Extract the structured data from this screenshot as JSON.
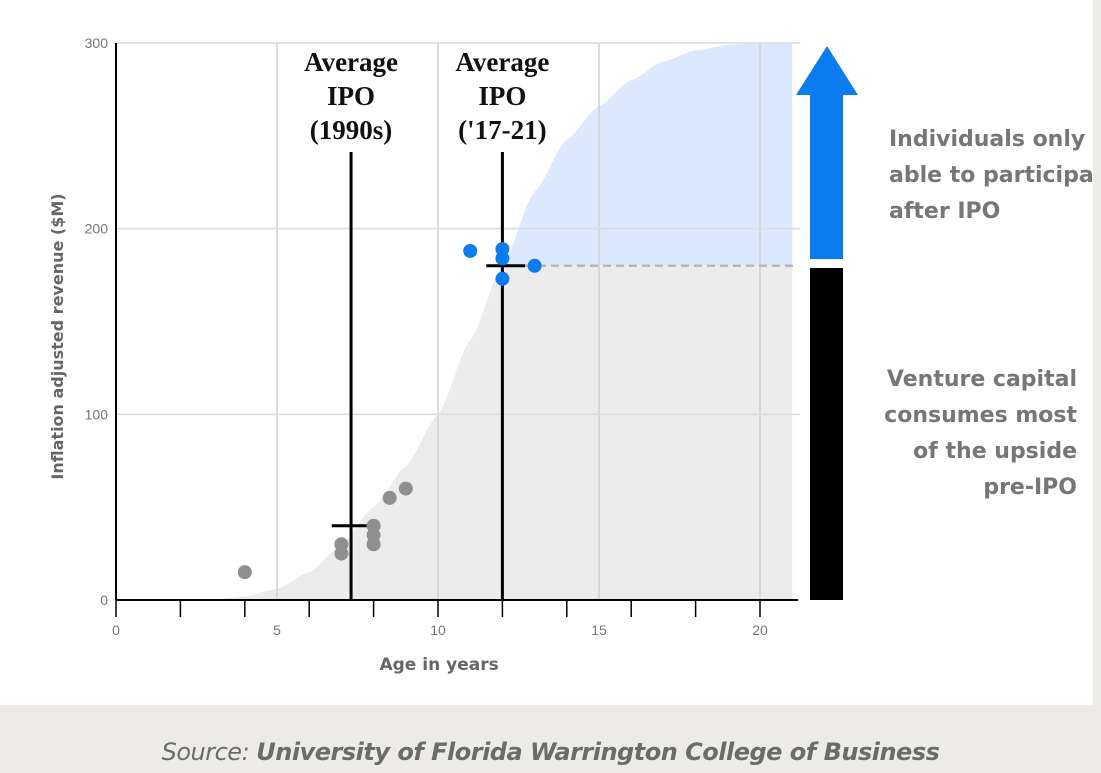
{
  "chart_data": {
    "type": "scatter",
    "xlabel": "Age in years",
    "ylabel": "Inflation adjusted revenue ($M)",
    "xlim": [
      0,
      21
    ],
    "ylim": [
      0,
      300
    ],
    "x_ticks": [
      0,
      5,
      10,
      15,
      20
    ],
    "y_ticks": [
      0,
      100,
      200,
      300
    ],
    "grid": true,
    "curve": {
      "x": [
        0,
        3,
        4,
        5,
        6,
        7,
        8,
        9,
        10,
        11,
        12,
        13,
        14,
        15,
        16,
        17,
        18,
        19,
        20,
        21
      ],
      "y": [
        0,
        0,
        2,
        6,
        15,
        30,
        50,
        72,
        100,
        140,
        180,
        220,
        248,
        266,
        280,
        290,
        296,
        299,
        300,
        300
      ],
      "below_threshold_color": "#ececec",
      "above_threshold_color": "#dce8fd",
      "threshold": 180
    },
    "series": [
      {
        "color": "#8f8f8f",
        "points": [
          [
            4,
            15
          ],
          [
            7,
            25
          ],
          [
            7,
            30
          ],
          [
            8,
            30
          ],
          [
            8,
            35
          ],
          [
            8,
            40
          ],
          [
            8.5,
            55
          ],
          [
            9,
            60
          ]
        ]
      },
      {
        "color": "#0a7cf0",
        "points": [
          [
            11,
            188
          ],
          [
            12,
            189
          ],
          [
            12,
            184
          ],
          [
            12,
            173
          ],
          [
            13,
            180
          ]
        ]
      }
    ],
    "annotations": [
      {
        "lines": [
          "Average",
          "IPO",
          "(1990s)"
        ],
        "x": 7.3,
        "y": 40,
        "range": [
          6.7,
          7.9
        ]
      },
      {
        "lines": [
          "Average",
          "IPO",
          "('17-21)"
        ],
        "x": 12,
        "y": 180,
        "range": [
          11.5,
          12.7
        ]
      }
    ],
    "reference_line": {
      "y": 180,
      "style": "dashed"
    },
    "side_notes": [
      {
        "lines": [
          "Individuals only",
          "able to participat",
          "after IPO"
        ],
        "color": "#0a7cf0"
      },
      {
        "lines": [
          "Venture capital",
          "consumes most",
          "of the upside",
          "pre-IPO"
        ],
        "color": "#000000"
      }
    ]
  },
  "source": {
    "label": "Source:",
    "text": "University of Florida Warrington College of Business"
  }
}
